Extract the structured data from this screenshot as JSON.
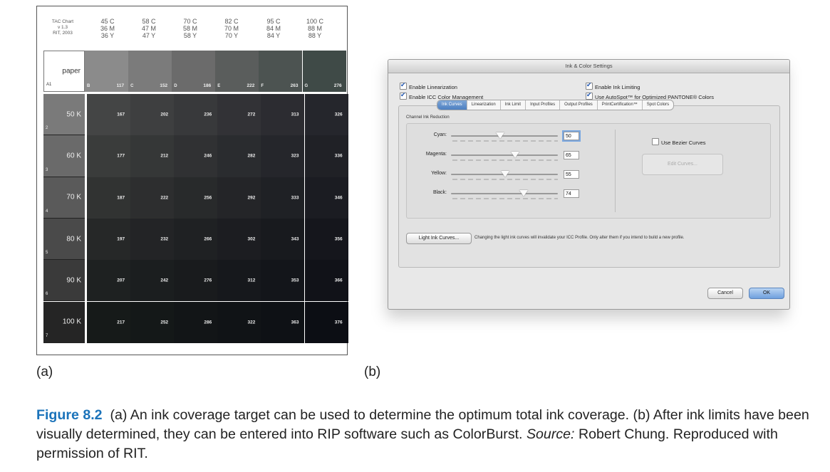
{
  "panel_a": {
    "label": "(a)",
    "corner_header": [
      "TAC Chart",
      "v 1.3",
      "RIT, 2003"
    ],
    "column_headers": [
      [
        "45 C",
        "36 M",
        "36 Y"
      ],
      [
        "58 C",
        "47 M",
        "47 Y"
      ],
      [
        "70 C",
        "58 M",
        "58 Y"
      ],
      [
        "82 C",
        "70 M",
        "70 Y"
      ],
      [
        "95 C",
        "84 M",
        "84 Y"
      ],
      [
        "100 C",
        "88 M",
        "88 Y"
      ]
    ],
    "top_row": {
      "index": "A1",
      "label": "paper",
      "letters": [
        "B",
        "C",
        "D",
        "E",
        "F",
        "G"
      ],
      "values": [
        "117",
        "152",
        "186",
        "222",
        "263",
        "276"
      ]
    },
    "rows": [
      {
        "index": "2",
        "label": "50 K",
        "values": [
          "167",
          "202",
          "236",
          "272",
          "313",
          "326"
        ]
      },
      {
        "index": "3",
        "label": "60 K",
        "values": [
          "177",
          "212",
          "246",
          "282",
          "323",
          "336"
        ]
      },
      {
        "index": "4",
        "label": "70 K",
        "values": [
          "187",
          "222",
          "256",
          "292",
          "333",
          "346"
        ]
      },
      {
        "index": "5",
        "label": "80 K",
        "values": [
          "197",
          "232",
          "266",
          "302",
          "343",
          "356"
        ]
      },
      {
        "index": "6",
        "label": "90 K",
        "values": [
          "207",
          "242",
          "276",
          "312",
          "353",
          "366"
        ]
      },
      {
        "index": "7",
        "label": "100 K",
        "values": [
          "217",
          "252",
          "286",
          "322",
          "363",
          "376"
        ]
      }
    ]
  },
  "panel_b": {
    "label": "(b)",
    "dialog": {
      "title": "Ink & Color Settings",
      "checkboxes": {
        "enable_linearization": {
          "label": "Enable Linearization",
          "checked": true
        },
        "enable_ink_limiting": {
          "label": "Enable Ink Limiting",
          "checked": true
        },
        "enable_icc": {
          "label": "Enable ICC Color Management",
          "checked": true
        },
        "use_autospot": {
          "label": "Use AutoSpot™ for Optimized PANTONE® Colors",
          "checked": true
        },
        "use_bezier": {
          "label": "Use Bezier Curves",
          "checked": false
        }
      },
      "tabs": [
        "Ink Curves",
        "Linearization",
        "Ink Limit",
        "Input Profiles",
        "Output Profiles",
        "PrintCertification™",
        "Spot Colors"
      ],
      "active_tab": "Ink Curves",
      "group_title": "Channel Ink Reduction",
      "sliders": [
        {
          "label": "Cyan:",
          "value": "50",
          "level": 0.5
        },
        {
          "label": "Magenta:",
          "value": "65",
          "level": 0.65
        },
        {
          "label": "Yellow:",
          "value": "55",
          "level": 0.55
        },
        {
          "label": "Black:",
          "value": "74",
          "level": 0.74
        }
      ],
      "edit_curves_label": "Edit Curves...",
      "light_ink_button": "Light Ink Curves...",
      "light_ink_note": "Changing the light ink curves will invalidate your ICC Profile. Only alter them if you intend to build a new profile.",
      "cancel_label": "Cancel",
      "ok_label": "OK"
    }
  },
  "caption": {
    "figure_label": "Figure 8.2",
    "text_part1": "(a) An ink coverage target can be used to determine the optimum total ink coverage. (b) After ink limits have been visually determined, they can be entered into RIP software such as ColorBurst.",
    "source_label": "Source:",
    "text_part2": "Robert Chung. Reproduced with permission of RIT."
  },
  "colors": {
    "figure_label": "#1b73ba",
    "tab_active": "#4d7fc2"
  }
}
